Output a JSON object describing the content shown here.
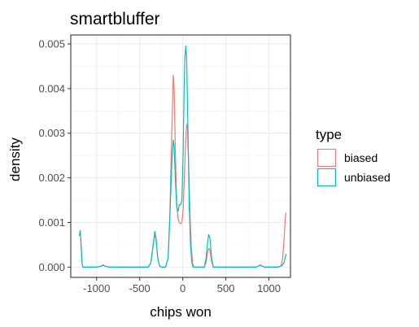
{
  "chart_data": {
    "type": "line",
    "title": "smartbluffer",
    "xlabel": "chips won",
    "ylabel": "density",
    "xlim": [
      -1300,
      1250
    ],
    "ylim": [
      -0.00023,
      0.0052
    ],
    "x_ticks": [
      -1000,
      -500,
      0,
      500,
      1000
    ],
    "x_tick_labels": [
      "-1000",
      "-500",
      "0",
      "500",
      "1000"
    ],
    "y_ticks": [
      0,
      0.001,
      0.002,
      0.003,
      0.004,
      0.005
    ],
    "y_tick_labels": [
      "0.000",
      "0.001",
      "0.002",
      "0.003",
      "0.004",
      "0.005"
    ],
    "grid": true,
    "legend": {
      "title": "type",
      "position": "right"
    },
    "series": [
      {
        "name": "biased",
        "color": "#F8766D",
        "points": [
          [
            -1200,
            0.0007
          ],
          [
            -1190,
            0.00078
          ],
          [
            -1180,
            0.0005
          ],
          [
            -1170,
            0.0001
          ],
          [
            -1160,
            0.0
          ],
          [
            -1000,
            0.0
          ],
          [
            -950,
            2e-05
          ],
          [
            -925,
            4e-05
          ],
          [
            -900,
            2e-05
          ],
          [
            -850,
            0.0
          ],
          [
            -400,
            0.0
          ],
          [
            -370,
            0.0001
          ],
          [
            -350,
            0.0004
          ],
          [
            -325,
            0.00075
          ],
          [
            -310,
            0.0006
          ],
          [
            -290,
            0.0002
          ],
          [
            -270,
            3e-05
          ],
          [
            -250,
            0.0
          ],
          [
            -200,
            0.0
          ],
          [
            -170,
            0.0002
          ],
          [
            -150,
            0.0012
          ],
          [
            -125,
            0.0032
          ],
          [
            -110,
            0.0043
          ],
          [
            -100,
            0.004
          ],
          [
            -85,
            0.0025
          ],
          [
            -70,
            0.0014
          ],
          [
            -55,
            0.00108
          ],
          [
            -40,
            0.001
          ],
          [
            -25,
            0.00097
          ],
          [
            -10,
            0.001
          ],
          [
            5,
            0.0013
          ],
          [
            20,
            0.0021
          ],
          [
            35,
            0.0029
          ],
          [
            45,
            0.0032
          ],
          [
            55,
            0.0031
          ],
          [
            70,
            0.0022
          ],
          [
            85,
            0.0011
          ],
          [
            100,
            0.0004
          ],
          [
            115,
            8e-05
          ],
          [
            130,
            0.0
          ],
          [
            250,
            0.0
          ],
          [
            270,
            0.0001
          ],
          [
            285,
            0.0003
          ],
          [
            300,
            0.00042
          ],
          [
            315,
            0.00038
          ],
          [
            335,
            0.00012
          ],
          [
            355,
            0.0
          ],
          [
            850,
            0.0
          ],
          [
            875,
            2e-05
          ],
          [
            900,
            4e-05
          ],
          [
            925,
            2e-05
          ],
          [
            950,
            0.0
          ],
          [
            1100,
            0.0
          ],
          [
            1140,
            2e-05
          ],
          [
            1160,
            0.0002
          ],
          [
            1175,
            0.0006
          ],
          [
            1190,
            0.0011
          ],
          [
            1200,
            0.00122
          ]
        ]
      },
      {
        "name": "unbiased",
        "color": "#00BFC4",
        "points": [
          [
            -1200,
            0.0007
          ],
          [
            -1190,
            0.00082
          ],
          [
            -1180,
            0.0005
          ],
          [
            -1170,
            0.0001
          ],
          [
            -1160,
            0.0
          ],
          [
            -1000,
            0.0
          ],
          [
            -950,
            2e-05
          ],
          [
            -925,
            5e-05
          ],
          [
            -900,
            2e-05
          ],
          [
            -850,
            0.0
          ],
          [
            -400,
            0.0
          ],
          [
            -370,
            0.0001
          ],
          [
            -350,
            0.0004
          ],
          [
            -325,
            0.0008
          ],
          [
            -310,
            0.00065
          ],
          [
            -290,
            0.0002
          ],
          [
            -270,
            3e-05
          ],
          [
            -250,
            0.0
          ],
          [
            -200,
            0.0
          ],
          [
            -170,
            0.0002
          ],
          [
            -150,
            0.0011
          ],
          [
            -125,
            0.0024
          ],
          [
            -110,
            0.00285
          ],
          [
            -100,
            0.0027
          ],
          [
            -85,
            0.0019
          ],
          [
            -70,
            0.00135
          ],
          [
            -55,
            0.00125
          ],
          [
            -40,
            0.0014
          ],
          [
            -25,
            0.0014
          ],
          [
            -10,
            0.0015
          ],
          [
            5,
            0.0026
          ],
          [
            15,
            0.0039
          ],
          [
            25,
            0.0047
          ],
          [
            35,
            0.00495
          ],
          [
            45,
            0.0047
          ],
          [
            60,
            0.0031
          ],
          [
            75,
            0.0014
          ],
          [
            90,
            0.0005
          ],
          [
            105,
            0.0001
          ],
          [
            120,
            0.0
          ],
          [
            250,
            0.0
          ],
          [
            270,
            0.0002
          ],
          [
            285,
            0.0005
          ],
          [
            300,
            0.00073
          ],
          [
            315,
            0.00065
          ],
          [
            335,
            0.0002
          ],
          [
            355,
            0.0
          ],
          [
            850,
            0.0
          ],
          [
            875,
            2e-05
          ],
          [
            900,
            5e-05
          ],
          [
            925,
            2e-05
          ],
          [
            950,
            0.0
          ],
          [
            1100,
            0.0
          ],
          [
            1150,
            3e-05
          ],
          [
            1175,
            0.0001
          ],
          [
            1190,
            0.00022
          ],
          [
            1200,
            0.0003
          ]
        ]
      }
    ]
  }
}
